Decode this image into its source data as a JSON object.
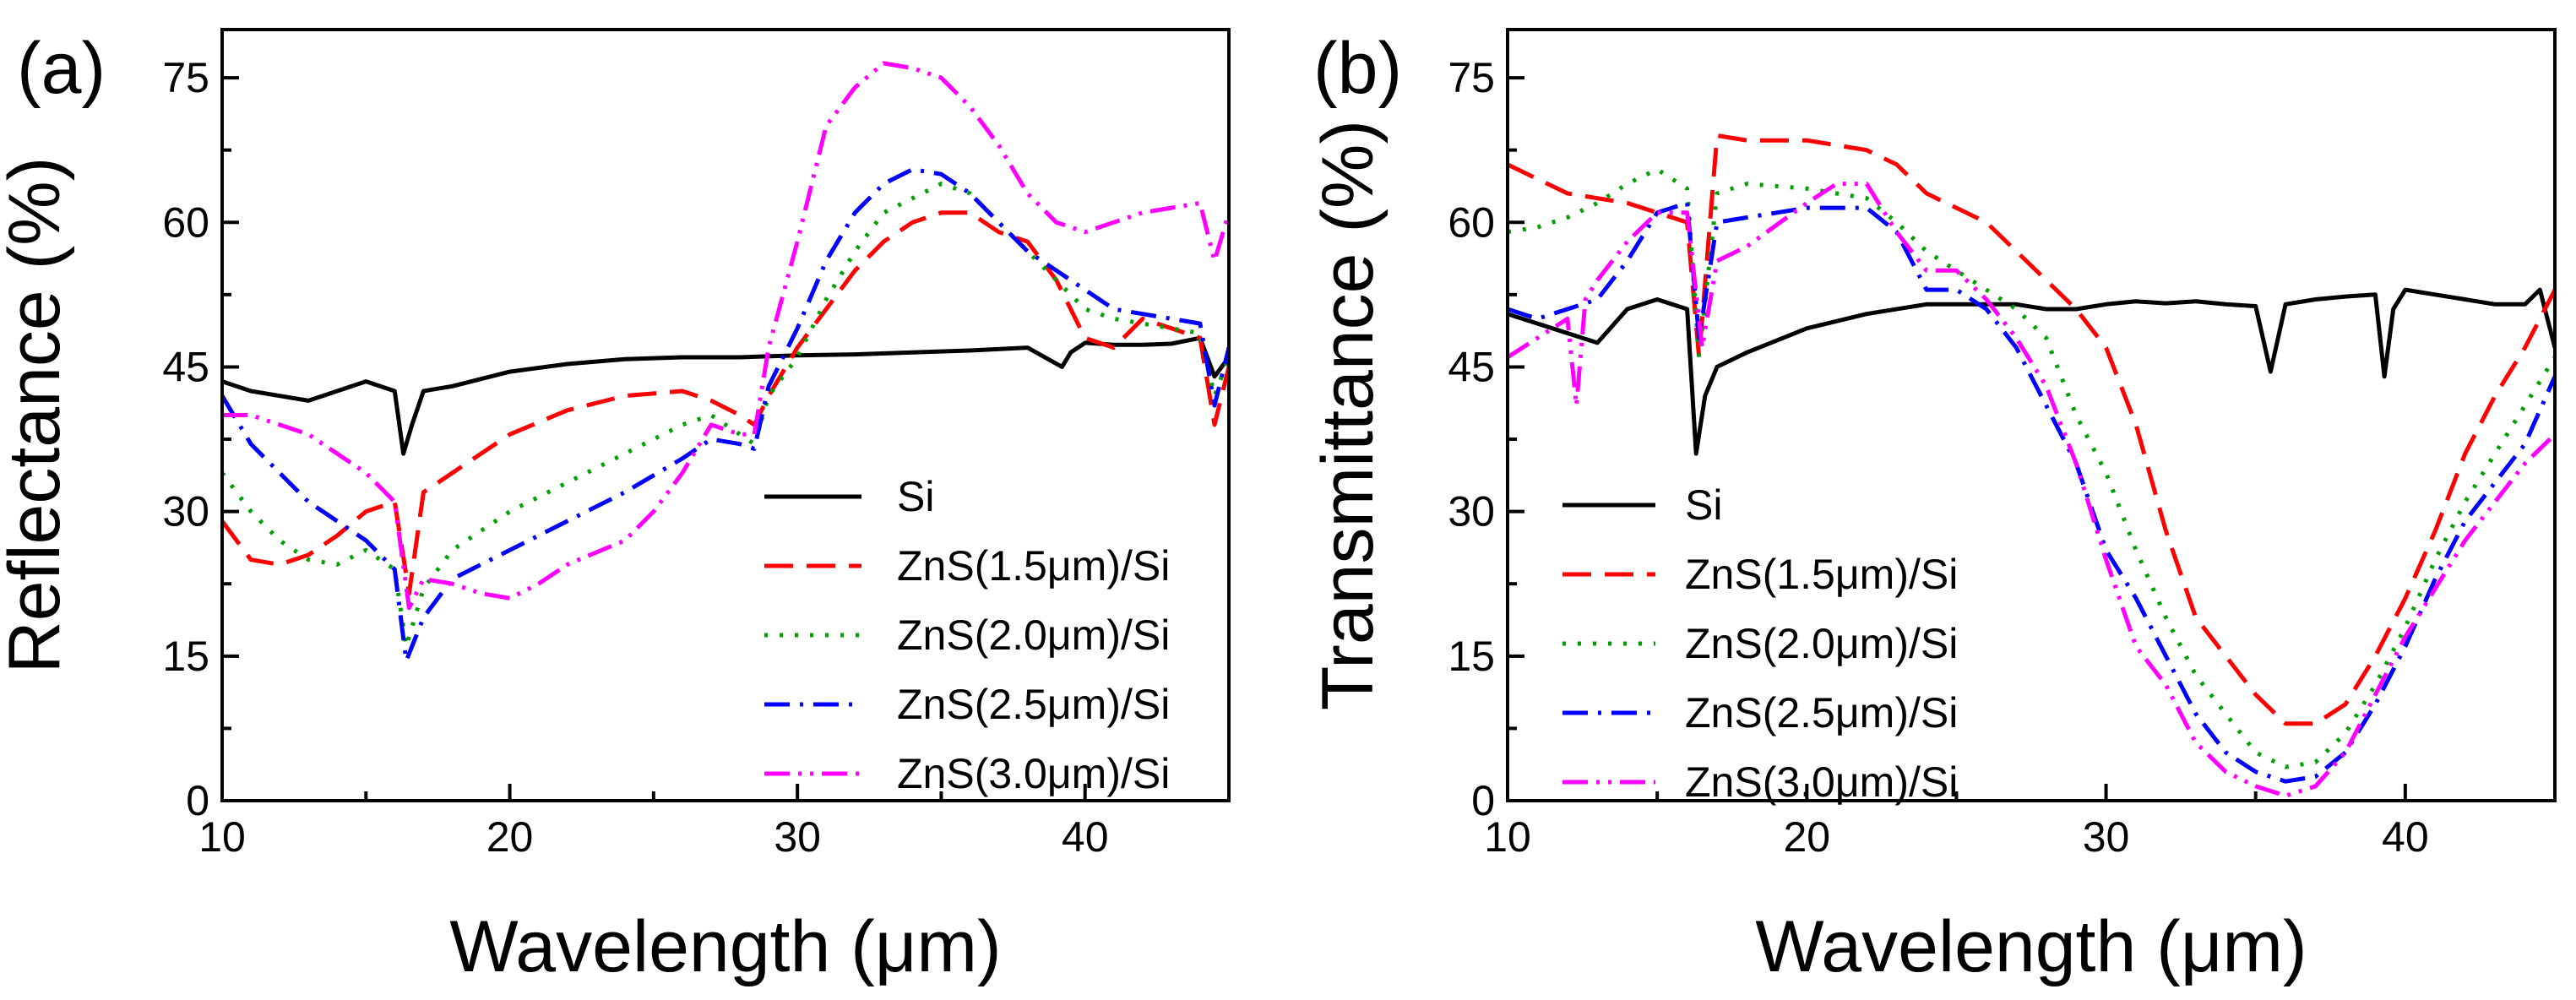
{
  "colors": {
    "Si": "#000000",
    "ZnS15": "#ff0000",
    "ZnS20": "#00a000",
    "ZnS25": "#0000ff",
    "ZnS30": "#ff00ff"
  },
  "chart_data": [
    {
      "type": "line",
      "panel_label": "(a)",
      "xlabel": "Wavelength (μm)",
      "ylabel": "Reflectance (%)",
      "xlim": [
        10,
        45
      ],
      "ylim": [
        0,
        80
      ],
      "xticks": [
        "10",
        "20",
        "30",
        "40"
      ],
      "yticks": [
        "0",
        "15",
        "30",
        "45",
        "60",
        "75"
      ],
      "legend_position": "lower-right",
      "series": [
        {
          "name": "Si",
          "style": "solid",
          "color": "#000000",
          "x": [
            10,
            11,
            12,
            13,
            14,
            15,
            16,
            16.3,
            16.6,
            17,
            18,
            20,
            22,
            24,
            26,
            28,
            30,
            32,
            34,
            36,
            38,
            39.2,
            39.5,
            40,
            41,
            42,
            43,
            44,
            44.5,
            45
          ],
          "y": [
            43.5,
            42.5,
            42,
            41.5,
            42.5,
            43.5,
            42.5,
            36,
            39,
            42.5,
            43,
            44.5,
            45.3,
            45.8,
            46,
            46,
            46.2,
            46.3,
            46.5,
            46.7,
            47,
            45,
            46.5,
            47.5,
            47.3,
            47.3,
            47.4,
            48,
            44,
            46
          ]
        },
        {
          "name": "ZnS(1.5μm)/Si",
          "style": "dashed",
          "color": "#ff0000",
          "x": [
            10,
            11,
            12,
            13,
            14,
            15,
            16,
            16.5,
            17,
            18,
            20,
            22,
            24,
            26,
            27,
            28,
            28.5,
            29,
            30,
            31,
            32,
            33,
            34,
            35,
            36,
            37,
            38,
            39,
            40,
            41,
            42,
            43,
            44,
            44.5,
            45
          ],
          "y": [
            29,
            25,
            24.5,
            25.5,
            27.5,
            30,
            31,
            21.5,
            32,
            34,
            38,
            40.5,
            42,
            42.5,
            41.5,
            40,
            39,
            42,
            47,
            51,
            55,
            58,
            60,
            61,
            61,
            59,
            58,
            54,
            48,
            47,
            50,
            49,
            48,
            39,
            45
          ]
        },
        {
          "name": "ZnS(2.0μm)/Si",
          "style": "dotted",
          "color": "#00a000",
          "x": [
            10,
            11,
            12,
            13,
            14,
            15,
            16,
            16.4,
            17,
            18,
            20,
            22,
            24,
            26,
            27,
            28,
            28.5,
            29,
            30,
            31,
            32,
            33,
            34,
            35,
            36,
            37,
            38,
            39,
            40,
            41,
            42,
            43,
            44,
            44.5,
            45
          ],
          "y": [
            34,
            30,
            27,
            25,
            24.5,
            26,
            24,
            16,
            22,
            26,
            30,
            33,
            36,
            39,
            40,
            38,
            37,
            42,
            46,
            52,
            57,
            61,
            62.5,
            64,
            63,
            60,
            57,
            54,
            51,
            50,
            49.5,
            49,
            48.5,
            42,
            46
          ]
        },
        {
          "name": "ZnS(2.5μm)/Si",
          "style": "dashdot",
          "color": "#0000ff",
          "x": [
            10,
            11,
            12,
            13,
            14,
            15,
            16,
            16.4,
            17,
            18,
            20,
            22,
            24,
            26,
            27,
            28,
            28.5,
            29,
            30,
            31,
            32,
            33,
            34,
            35,
            36,
            37,
            38,
            39,
            40,
            41,
            42,
            43,
            44,
            44.5,
            45
          ],
          "y": [
            42,
            37,
            34,
            31,
            29,
            27,
            24,
            14.5,
            19,
            23,
            26,
            29,
            32,
            35.5,
            37.5,
            37,
            36.5,
            43,
            49,
            56,
            61,
            64,
            65.5,
            65,
            63,
            60,
            57,
            55,
            53,
            51,
            50.5,
            50,
            49.5,
            41,
            47
          ]
        },
        {
          "name": "ZnS(3.0μm)/Si",
          "style": "dashdotdot",
          "color": "#ff00ff",
          "x": [
            10,
            11,
            12,
            13,
            14,
            15,
            16,
            16.5,
            17,
            18,
            19,
            20,
            21,
            22,
            24,
            25,
            26,
            27,
            28,
            28.5,
            29,
            30,
            31,
            32,
            33,
            34,
            35,
            36,
            37,
            38,
            39,
            40,
            41,
            42,
            43,
            44,
            44.5,
            45
          ],
          "y": [
            40,
            40,
            39,
            38,
            36,
            34,
            31,
            20,
            23,
            22.5,
            21.5,
            21,
            22.5,
            24.5,
            27,
            30,
            34,
            39,
            38,
            38,
            47,
            58,
            70,
            74,
            76.5,
            76,
            75,
            72,
            68,
            63,
            60,
            59,
            60,
            61,
            61.5,
            62,
            56,
            61
          ]
        }
      ]
    },
    {
      "type": "line",
      "panel_label": "(b)",
      "xlabel": "Wavelength (μm)",
      "ylabel": "Transmittance (%)",
      "xlim": [
        10,
        45
      ],
      "ylim": [
        0,
        80
      ],
      "xticks": [
        "10",
        "20",
        "30",
        "40"
      ],
      "yticks": [
        "0",
        "15",
        "30",
        "45",
        "60",
        "75"
      ],
      "legend_position": "lower-left",
      "series": [
        {
          "name": "Si",
          "style": "solid",
          "color": "#000000",
          "x": [
            10,
            11,
            12,
            13,
            14,
            15,
            16,
            16.3,
            16.6,
            17,
            18,
            20,
            22,
            24,
            25,
            26,
            27,
            28,
            29,
            30,
            31,
            32,
            33,
            34,
            35,
            35.5,
            36,
            37,
            38,
            39,
            39.3,
            39.6,
            40,
            41,
            42,
            43,
            44,
            44.5,
            45
          ],
          "y": [
            50.5,
            49.5,
            48.5,
            47.5,
            51,
            52,
            51,
            36,
            42,
            45,
            46.5,
            49,
            50.5,
            51.5,
            51.5,
            51.5,
            51.5,
            51,
            51,
            51.5,
            51.8,
            51.6,
            51.8,
            51.5,
            51.3,
            44.5,
            51.5,
            52,
            52.3,
            52.5,
            44,
            51,
            53,
            52.5,
            52,
            51.5,
            51.5,
            53,
            47
          ]
        },
        {
          "name": "ZnS(1.5μm)/Si",
          "style": "dashed",
          "color": "#ff0000",
          "x": [
            10,
            11,
            12,
            13,
            14,
            15,
            16,
            16.4,
            17,
            18,
            20,
            22,
            23,
            24,
            25,
            26,
            27,
            28,
            29,
            30,
            31,
            32,
            33,
            34,
            35,
            36,
            37,
            38,
            39,
            40,
            41,
            42,
            43,
            44,
            45
          ],
          "y": [
            66,
            64.5,
            63,
            62.5,
            62,
            61,
            60,
            46,
            69,
            68.5,
            68.5,
            67.5,
            66,
            63,
            61.5,
            60,
            57,
            54,
            51,
            47,
            39,
            28,
            19,
            15,
            11,
            8,
            8,
            10,
            15,
            21,
            28,
            36,
            42,
            47,
            53
          ]
        },
        {
          "name": "ZnS(2.0μm)/Si",
          "style": "dotted",
          "color": "#00a000",
          "x": [
            10,
            11,
            12,
            13,
            14,
            15,
            16,
            16.4,
            17,
            18,
            20,
            22,
            23,
            24,
            25,
            26,
            27,
            28,
            29,
            30,
            31,
            32,
            33,
            34,
            35,
            36,
            37,
            38,
            39,
            40,
            41,
            42,
            43,
            44,
            45
          ],
          "y": [
            59,
            59.5,
            60.5,
            62,
            64,
            65.5,
            63.5,
            46,
            63,
            64,
            63.5,
            62.5,
            60,
            57,
            55,
            53,
            51,
            48,
            40,
            34,
            26,
            19,
            13,
            9,
            5,
            3.5,
            4,
            7,
            12,
            18,
            25,
            31,
            36,
            41,
            46
          ]
        },
        {
          "name": "ZnS(2.5μm)/Si",
          "style": "dashdot",
          "color": "#0000ff",
          "x": [
            10,
            11,
            12,
            13,
            14,
            15,
            16,
            16.4,
            17,
            18,
            20,
            22,
            23,
            24,
            25,
            26,
            27,
            28,
            29,
            30,
            31,
            32,
            33,
            34,
            35,
            36,
            37,
            38,
            39,
            40,
            41,
            42,
            43,
            44,
            45
          ],
          "y": [
            51,
            50,
            51,
            52,
            56,
            61,
            62,
            48,
            60,
            60.5,
            61.5,
            61.5,
            59,
            53,
            53,
            51,
            47,
            41,
            35,
            26,
            21,
            15,
            9,
            5,
            3,
            2,
            2.5,
            5,
            10,
            16,
            23,
            29,
            33,
            37,
            44
          ]
        },
        {
          "name": "ZnS(3.0μm)/Si",
          "style": "dashdotdot",
          "color": "#ff00ff",
          "x": [
            10,
            11,
            12,
            12.3,
            12.6,
            13,
            14,
            15,
            16,
            16.5,
            17,
            18,
            20,
            21,
            22,
            23,
            24,
            25,
            26,
            27,
            28,
            29,
            30,
            31,
            32,
            33,
            34,
            35,
            36,
            37,
            38,
            39,
            40,
            41,
            42,
            43,
            44,
            45
          ],
          "y": [
            46,
            48,
            50,
            41,
            52,
            54,
            58,
            61,
            61,
            47,
            56,
            57.5,
            62,
            64,
            64,
            59,
            55,
            55,
            52,
            48,
            43,
            35,
            25,
            16,
            12,
            6,
            3,
            1.5,
            0.5,
            1.5,
            5,
            11,
            17,
            22,
            27,
            31,
            35,
            38
          ]
        }
      ]
    }
  ]
}
